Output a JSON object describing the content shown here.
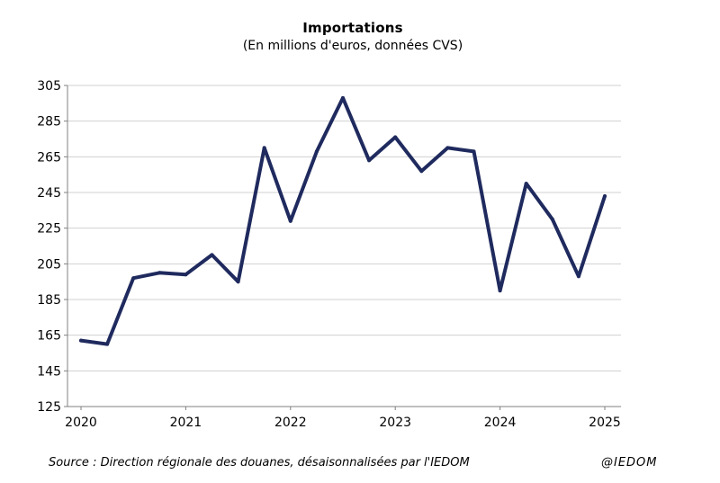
{
  "chart_data": {
    "type": "line",
    "title": "Importations",
    "subtitle": "(En millions  d'euros, données CVS)",
    "x": [
      2020.0,
      2020.25,
      2020.5,
      2020.75,
      2021.0,
      2021.25,
      2021.5,
      2021.75,
      2022.0,
      2022.25,
      2022.5,
      2022.75,
      2023.0,
      2023.25,
      2023.5,
      2023.75,
      2024.0,
      2024.25,
      2024.5,
      2024.75,
      2025.0
    ],
    "series": [
      {
        "values": [
          162,
          160,
          197,
          200,
          199,
          210,
          195,
          270,
          229,
          268,
          298,
          263,
          276,
          257,
          270,
          268,
          190,
          250,
          230,
          198,
          243
        ]
      }
    ],
    "xticks": [
      "2020",
      "2021",
      "2022",
      "2023",
      "2024",
      "2025"
    ],
    "yticks": [
      "125",
      "145",
      "165",
      "185",
      "205",
      "225",
      "245",
      "265",
      "285",
      "305"
    ],
    "xlim": [
      2020,
      2025
    ],
    "ylim": [
      125,
      305
    ],
    "grid": true,
    "legend": "none",
    "line_color": "#1f2a5e",
    "grid_color": "#d0d0d0",
    "axis_color": "#808080"
  },
  "source": "Source : Direction régionale des douanes, désaisonnalisées par l'IEDOM",
  "copyright": "@IEDOM"
}
